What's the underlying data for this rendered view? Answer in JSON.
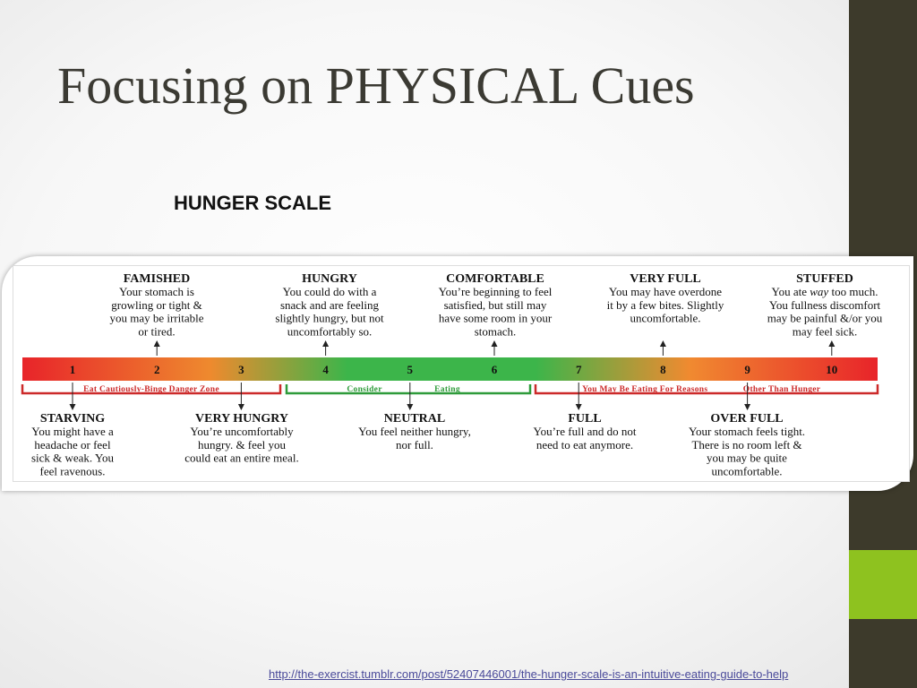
{
  "slide": {
    "title": "Focusing on PHYSICAL Cues",
    "subtitle": "HUNGER SCALE",
    "source_url": "http://the-exercist.tumblr.com/post/52407446001/the-hunger-scale-is-an-intuitive-eating-guide-to-help",
    "colors": {
      "sidebar": "#3d3a2b",
      "accent": "#8ec21f",
      "title": "#3b3a33"
    }
  },
  "scale": {
    "ticks": [
      "1",
      "2",
      "3",
      "4",
      "5",
      "6",
      "7",
      "8",
      "9",
      "10"
    ],
    "top_states": [
      {
        "tick": 2,
        "title": "FAMISHED",
        "lines": [
          "Your stomach is",
          "growling or tight &",
          "you may be irritable",
          "or tired."
        ]
      },
      {
        "tick": 4,
        "title": "HUNGRY",
        "lines": [
          "You could do with a",
          "snack and are feeling",
          "slightly hungry, but not",
          "uncomfortably so."
        ]
      },
      {
        "tick": 6,
        "title": "COMFORTABLE",
        "lines": [
          "You’re beginning to feel",
          "satisfied, but still may",
          "have some room in your",
          "stomach."
        ]
      },
      {
        "tick": 8,
        "title": "VERY FULL",
        "lines": [
          "You may have overdone",
          "it by a few bites. Slightly",
          "uncomfortable."
        ]
      },
      {
        "tick": 10,
        "title": "STUFFED",
        "lines": [
          "You ate way too much.",
          "You fullness discomfort",
          "may be painful &/or you",
          "may feel sick."
        ]
      }
    ],
    "bottom_states": [
      {
        "tick": 1,
        "title": "STARVING",
        "lines": [
          "You might have a",
          "headache or feel",
          "sick & weak. You",
          "feel ravenous."
        ]
      },
      {
        "tick": 3,
        "title": "VERY HUNGRY",
        "lines": [
          "You’re uncomfortably",
          "hungry.  & feel you",
          "could eat an entire meal."
        ]
      },
      {
        "tick": 5,
        "title": "NEUTRAL",
        "lines": [
          "You feel neither hungry,",
          "nor full."
        ]
      },
      {
        "tick": 7,
        "title": "FULL",
        "lines": [
          "You’re full and do not",
          "need to eat anymore."
        ]
      },
      {
        "tick": 9,
        "title": "OVER FULL",
        "lines": [
          "Your stomach feels tight.",
          "There is no room left &",
          "you may be quite",
          "uncomfortable."
        ]
      }
    ],
    "zones": [
      {
        "label": "Eat Cautiously-Binge Danger Zone",
        "from": 1,
        "to": 3,
        "color": "#cc2a2a"
      },
      {
        "label_left": "Consider",
        "label_right": "Eating",
        "from": 4,
        "to": 6,
        "color": "#2e9b3a"
      },
      {
        "label_left": "You May Be Eating For Reasons",
        "label_right": "Other Than Hunger",
        "from": 7,
        "to": 10,
        "color": "#cc2a2a"
      }
    ],
    "bar_colors": [
      "#e8242a",
      "#ee8a2e",
      "#3cb54a",
      "#3cb54a",
      "#f08a30",
      "#e8242a"
    ]
  }
}
